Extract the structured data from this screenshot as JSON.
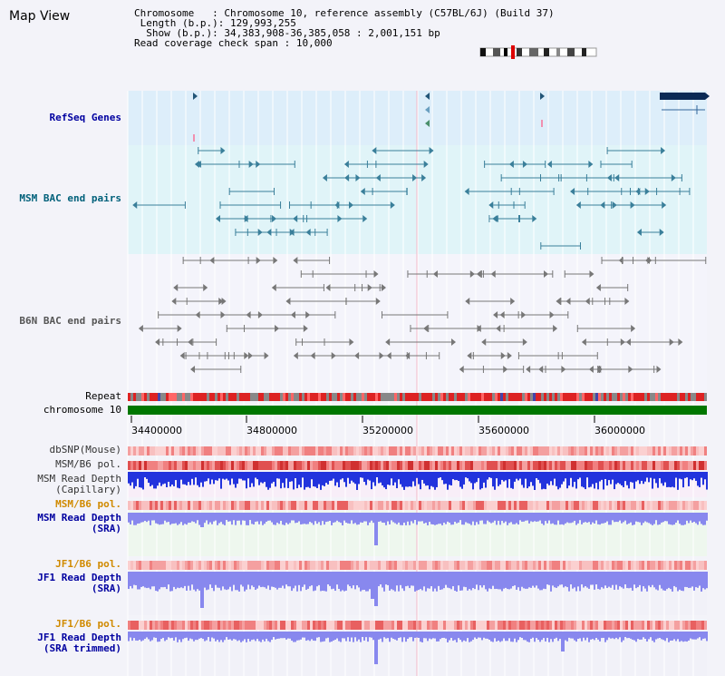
{
  "page": {
    "title": "Map View"
  },
  "info": {
    "chromosome_key": "Chromosome",
    "chromosome_val": "Chromosome 10, reference assembly (C57BL/6J) (Build 37)",
    "length_key": "Length (b.p.)",
    "length_val": "129,993,255",
    "show_key": "Show (b.p.)",
    "show_val": "34,383,908-36,385,058 : 2,001,151 bp",
    "coverage_key": "Read coverage check span",
    "coverage_val": "10,000"
  },
  "tracks": {
    "refseq": "RefSeq Genes",
    "msm_bac": "MSM BAC end pairs",
    "b6n_bac": "B6N BAC end pairs",
    "repeat": "Repeat",
    "chromosome": "chromosome 10",
    "dbsnp": "dbSNP(Mouse)",
    "msm_b6_pol": "MSM/B6 pol.",
    "msm_depth_cap_1": "MSM Read Depth",
    "msm_depth_cap_2": "(Capillary)",
    "msm_b6_pol_2": "MSM/B6 pol.",
    "msm_depth_sra_1": "MSM Read Depth",
    "msm_depth_sra_2": "(SRA)",
    "jf1_b6_pol": "JF1/B6 pol.",
    "jf1_depth_sra_1": "JF1 Read Depth",
    "jf1_depth_sra_2": "(SRA)",
    "jf1_b6_pol_2": "JF1/B6 pol.",
    "jf1_depth_trim_1": "JF1 Read Depth",
    "jf1_depth_trim_2": "(SRA trimmed)"
  },
  "axis": {
    "ticks": [
      "34400000",
      "34800000",
      "35200000",
      "35600000",
      "36000000"
    ]
  },
  "colors": {
    "refseq_bg": "#ddeefa",
    "msm_bg": "#e0f4f8",
    "depth_bg": "#f8eef8",
    "sra_bg": "#eef7ee",
    "chromosome": "#007700",
    "bac_teal": "#3a7f9a",
    "bac_gray": "#777777",
    "depth_blue": "#2233dd",
    "sra_blue": "#8888ee"
  }
}
